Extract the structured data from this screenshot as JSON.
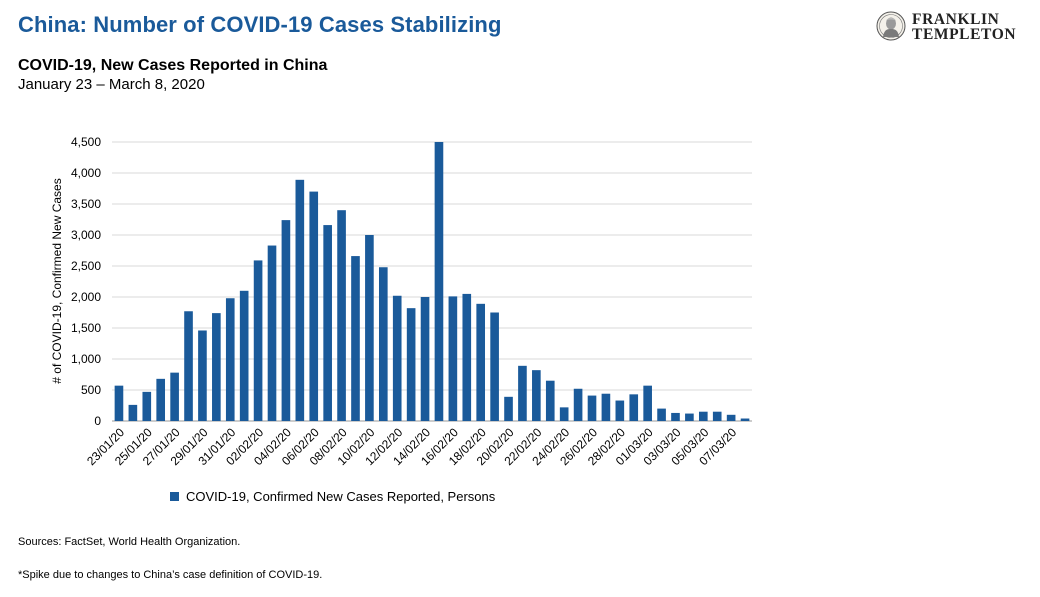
{
  "header": {
    "title": "China: Number of COVID-19 Cases Stabilizing",
    "logo_line1": "FRANKLIN",
    "logo_line2": "TEMPLETON",
    "brand_color": "#1a5a9a"
  },
  "chart_data": {
    "type": "bar",
    "title": "COVID-19, New Cases Reported in China",
    "subtitle": "January 23 – March 8, 2020",
    "ylabel": "# of COVID-19, Confirmed New Cases",
    "xlabel": "",
    "ylim": [
      0,
      4500
    ],
    "yticks": [
      0,
      500,
      1000,
      1500,
      2000,
      2500,
      3000,
      3500,
      4000,
      4500
    ],
    "ytick_labels": [
      "0",
      "500",
      "1,000",
      "1,500",
      "2,000",
      "2,500",
      "3,000",
      "3,500",
      "4,000",
      "4,500"
    ],
    "grid": true,
    "legend_position": "bottom",
    "bar_color": "#1a5a9a",
    "categories": [
      "23/01/20",
      "24/01/20",
      "25/01/20",
      "26/01/20",
      "27/01/20",
      "28/01/20",
      "29/01/20",
      "30/01/20",
      "31/01/20",
      "01/02/20",
      "02/02/20",
      "03/02/20",
      "04/02/20",
      "05/02/20",
      "06/02/20",
      "07/02/20",
      "08/02/20",
      "09/02/20",
      "10/02/20",
      "11/02/20",
      "12/02/20",
      "13/02/20",
      "14/02/20",
      "15/02/20",
      "16/02/20",
      "17/02/20",
      "18/02/20",
      "19/02/20",
      "20/02/20",
      "21/02/20",
      "22/02/20",
      "23/02/20",
      "24/02/20",
      "25/02/20",
      "26/02/20",
      "27/02/20",
      "28/02/20",
      "29/02/20",
      "01/03/20",
      "02/03/20",
      "03/03/20",
      "04/03/20",
      "05/03/20",
      "06/03/20",
      "07/03/20",
      "08/03/20"
    ],
    "tick_labels_shown": [
      "23/01/20",
      "25/01/20",
      "27/01/20",
      "29/01/20",
      "31/01/20",
      "02/02/20",
      "04/02/20",
      "06/02/20",
      "08/02/20",
      "10/02/20",
      "12/02/20",
      "14/02/20",
      "16/02/20",
      "18/02/20",
      "20/02/20",
      "22/02/20",
      "24/02/20",
      "26/02/20",
      "28/02/20",
      "01/03/20",
      "03/03/20",
      "05/03/20",
      "07/03/20"
    ],
    "series": [
      {
        "name": "COVID-19, Confirmed New Cases Reported, Persons",
        "values": [
          570,
          260,
          470,
          680,
          780,
          1770,
          1460,
          1740,
          1980,
          2100,
          2590,
          2830,
          3240,
          3890,
          3700,
          3160,
          3400,
          2660,
          3000,
          2480,
          2020,
          1820,
          2000,
          4500,
          2010,
          2050,
          1890,
          1750,
          390,
          890,
          820,
          650,
          220,
          520,
          410,
          440,
          330,
          430,
          570,
          200,
          130,
          120,
          150,
          150,
          100,
          40
        ]
      }
    ]
  },
  "footer": {
    "sources": "Sources: FactSet, World Health Organization.",
    "footnote": "*Spike due to changes to China’s case definition of COVID-19."
  }
}
